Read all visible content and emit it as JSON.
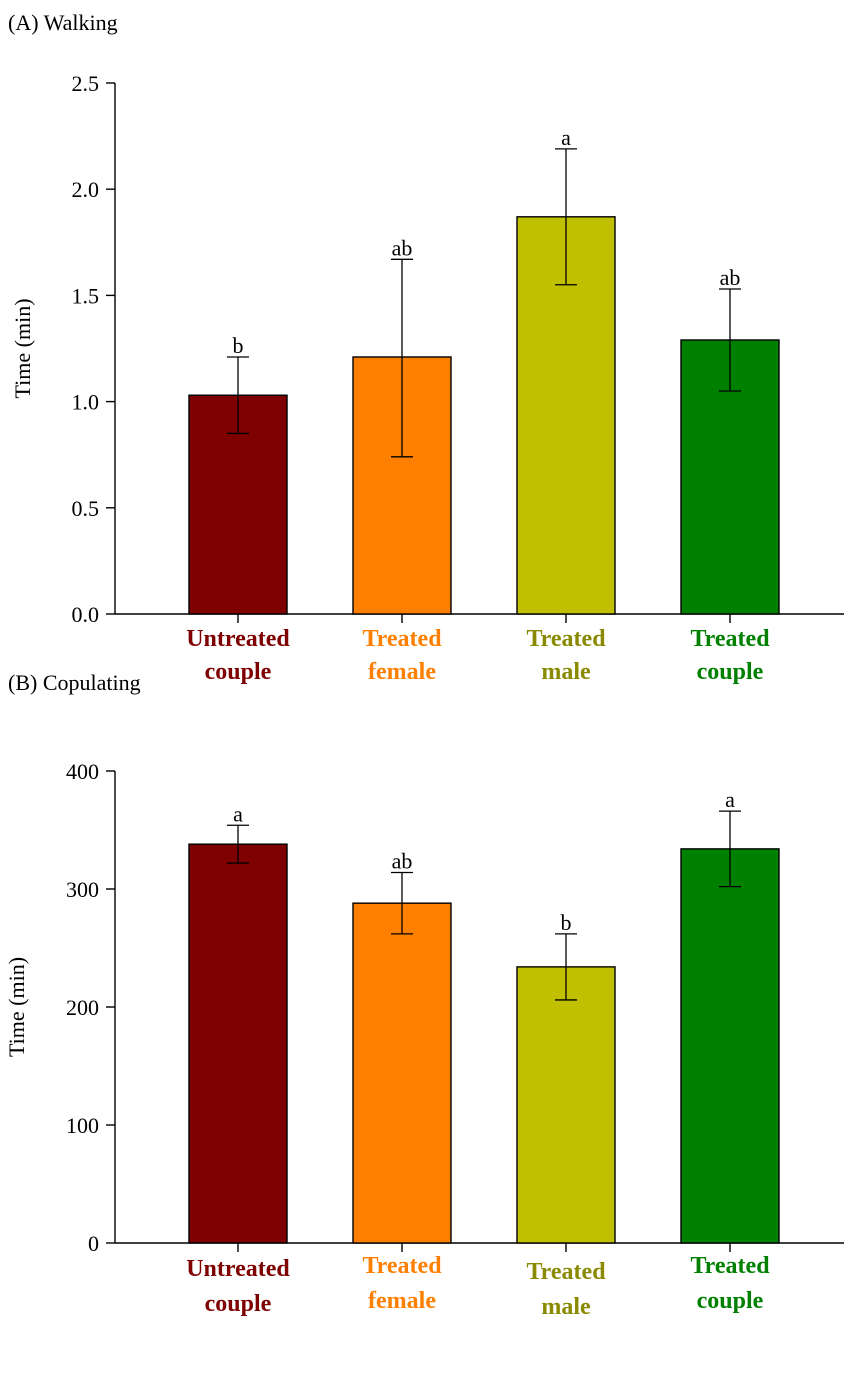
{
  "chart_data": [
    {
      "type": "bar",
      "title": "(A) Walking",
      "xlabel": "",
      "ylabel": "Time (min)",
      "ylim": [
        0,
        2.5
      ],
      "yticks": [
        "0.0",
        "0.5",
        "1.0",
        "1.5",
        "2.0",
        "2.5"
      ],
      "grid": false,
      "categories": [
        [
          "Untreated",
          "couple"
        ],
        [
          "Treated",
          "female"
        ],
        [
          "Treated",
          "male"
        ],
        [
          "Treated",
          "couple"
        ]
      ],
      "values": [
        1.03,
        1.21,
        1.87,
        1.29
      ],
      "error_bars": [
        [
          0.85,
          1.21
        ],
        [
          0.74,
          1.67
        ],
        [
          1.55,
          2.19
        ],
        [
          1.05,
          1.53
        ]
      ],
      "significance": [
        "b",
        "ab",
        "a",
        "ab"
      ],
      "colors": [
        "#7f0000",
        "#ff8000",
        "#c0c000",
        "#008000"
      ],
      "label_colors": [
        "#7f0000",
        "#ff8000",
        "#8a8a00",
        "#008000"
      ]
    },
    {
      "type": "bar",
      "title": "(B) Copulating",
      "xlabel": "",
      "ylabel": "Time (min)",
      "ylim": [
        0,
        400
      ],
      "yticks": [
        "0",
        "100",
        "200",
        "300",
        "400"
      ],
      "grid": false,
      "categories": [
        [
          "Untreated",
          "couple"
        ],
        [
          "Treated",
          "female"
        ],
        [
          "Treated",
          "male"
        ],
        [
          "Treated",
          "couple"
        ]
      ],
      "values": [
        338,
        288,
        234,
        334
      ],
      "error_bars": [
        [
          322,
          354
        ],
        [
          262,
          314
        ],
        [
          206,
          262
        ],
        [
          302,
          366
        ]
      ],
      "significance": [
        "a",
        "ab",
        "b",
        "a"
      ],
      "colors": [
        "#7f0000",
        "#ff8000",
        "#c0c000",
        "#008000"
      ],
      "label_colors": [
        "#7f0000",
        "#ff8000",
        "#8a8a00",
        "#008000"
      ]
    }
  ]
}
